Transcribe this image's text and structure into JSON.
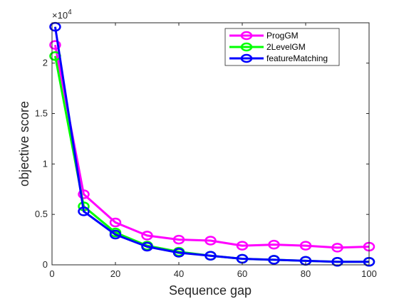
{
  "chart_data": {
    "type": "line",
    "xlabel": "Sequence gap",
    "ylabel": "objective score",
    "xlim": [
      0,
      100
    ],
    "ylim": [
      0,
      24000
    ],
    "xticks": [
      0,
      20,
      40,
      60,
      80,
      100
    ],
    "yticks": [
      0,
      5000,
      10000,
      15000,
      20000
    ],
    "xtick_labels": [
      "0",
      "20",
      "40",
      "60",
      "80",
      "100"
    ],
    "ytick_labels": [
      "0",
      "0.5",
      "1",
      "1.5",
      "2"
    ],
    "y_multiplier_base": "×10",
    "y_multiplier_exp": "4",
    "grid": false,
    "legend_position": "top-right",
    "series": [
      {
        "name": "ProgGM",
        "color": "#ff00ff",
        "x": [
          1,
          10,
          20,
          30,
          40,
          50,
          60,
          70,
          80,
          90,
          100
        ],
        "y": [
          21800,
          7000,
          4200,
          2900,
          2500,
          2400,
          1900,
          2000,
          1900,
          1700,
          1800
        ]
      },
      {
        "name": "2LevelGM",
        "color": "#00ff00",
        "x": [
          1,
          10,
          20,
          30,
          40,
          50,
          60,
          70,
          80,
          90,
          100
        ],
        "y": [
          20700,
          5800,
          3200,
          1900,
          1300,
          900,
          600,
          500,
          400,
          300,
          300
        ]
      },
      {
        "name": "featureMatching",
        "color": "#0000ff",
        "x": [
          1,
          10,
          20,
          30,
          40,
          50,
          60,
          70,
          80,
          90,
          100
        ],
        "y": [
          23600,
          5300,
          3000,
          1800,
          1200,
          900,
          600,
          500,
          400,
          300,
          300
        ]
      }
    ]
  }
}
